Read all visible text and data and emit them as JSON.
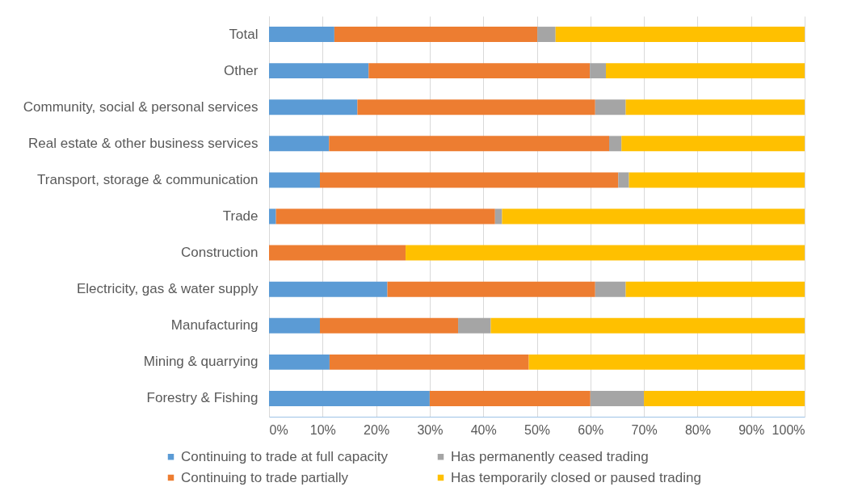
{
  "chart_data": {
    "type": "bar",
    "orientation": "horizontal",
    "stacked": true,
    "categories": [
      "Total",
      "Other",
      "Community, social & personal services",
      "Real estate & other business services",
      "Transport, storage & communication",
      "Trade",
      "Construction",
      "Electricity, gas & water supply",
      "Manufacturing",
      "Mining & quarrying",
      "Forestry & Fishing"
    ],
    "series": [
      {
        "name": "Continuing to trade at full capacity",
        "color": "#5b9bd5",
        "values": [
          12.2,
          18.6,
          16.5,
          11.2,
          9.5,
          1.3,
          null,
          22.1,
          9.5,
          11.3,
          30
        ]
      },
      {
        "name": "Continuing to trade partially",
        "color": "#ed7d31",
        "values": [
          37.9,
          41.3,
          44.4,
          52.3,
          55.7,
          40.9,
          25.5,
          38.8,
          25.8,
          37.2,
          30
        ]
      },
      {
        "name": "Has permanently ceased trading",
        "color": "#a5a5a5",
        "values": [
          3.4,
          3.0,
          5.7,
          2.3,
          2.0,
          1.3,
          null,
          5.7,
          6.1,
          null,
          10
        ]
      },
      {
        "name": "Has temporarily closed or paused trading",
        "color": "#ffc000",
        "values": [
          46.5,
          37.1,
          33.4,
          34.2,
          32.8,
          56.5,
          74.5,
          33.4,
          58.6,
          51.5,
          30
        ]
      }
    ],
    "xlim": [
      0,
      100
    ],
    "xticks": [
      {
        "value": 0,
        "label": "0%"
      },
      {
        "value": 10,
        "label": "10%"
      },
      {
        "value": 20,
        "label": "20%"
      },
      {
        "value": 30,
        "label": "30%"
      },
      {
        "value": 40,
        "label": "40%"
      },
      {
        "value": 50,
        "label": "50%"
      },
      {
        "value": 60,
        "label": "60%"
      },
      {
        "value": 70,
        "label": "70%"
      },
      {
        "value": 80,
        "label": "80%"
      },
      {
        "value": 90,
        "label": "90%"
      },
      {
        "value": 100,
        "label": "100%"
      }
    ],
    "grid": "x",
    "legend": "bottom"
  }
}
